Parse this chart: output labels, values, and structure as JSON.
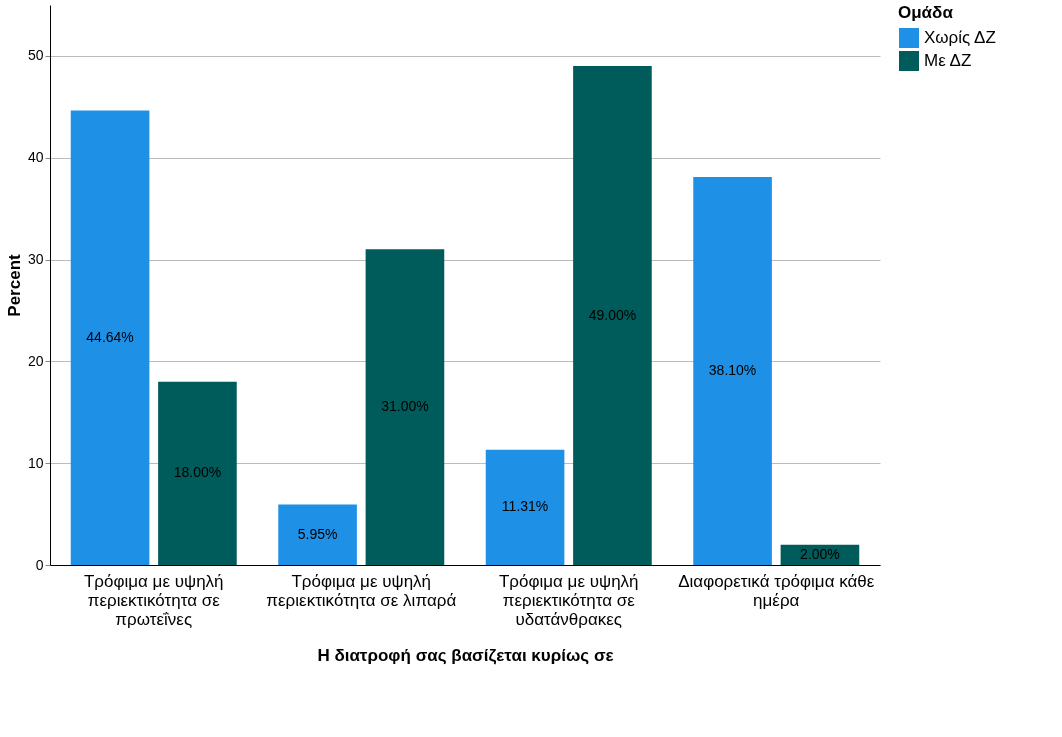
{
  "chart_data": {
    "type": "bar",
    "xlabel": "Η διατροφή σας βασίζεται κυρίως σε",
    "ylabel": "Percent",
    "legend_title": "Ομάδα",
    "categories": [
      "Τρόφιμα με υψηλή περιεκτικότητα σε πρωτεΐνες",
      "Τρόφιμα με υψηλή περιεκτικότητα σε λιπαρά",
      "Τρόφιμα με υψηλή περιεκτικότητα σε υδατάνθρακες",
      "Διαφορετικά τρόφιμα κάθε ημέρα"
    ],
    "series": [
      {
        "name": "Χωρίς ΔΖ",
        "color": "#1e90e6",
        "values": [
          44.64,
          5.95,
          11.31,
          38.1
        ],
        "value_labels": [
          "44.64%",
          "5.95%",
          "11.31%",
          "38.10%"
        ]
      },
      {
        "name": "Με ΔΖ",
        "color": "#005c5a",
        "values": [
          18.0,
          31.0,
          49.0,
          2.0
        ],
        "value_labels": [
          "18.00%",
          "31.00%",
          "49.00%",
          "2.00%"
        ]
      }
    ],
    "ylim": [
      0,
      55
    ],
    "yticks": [
      0,
      10,
      20,
      30,
      40,
      50
    ],
    "grid": "y",
    "legend": "top right"
  }
}
